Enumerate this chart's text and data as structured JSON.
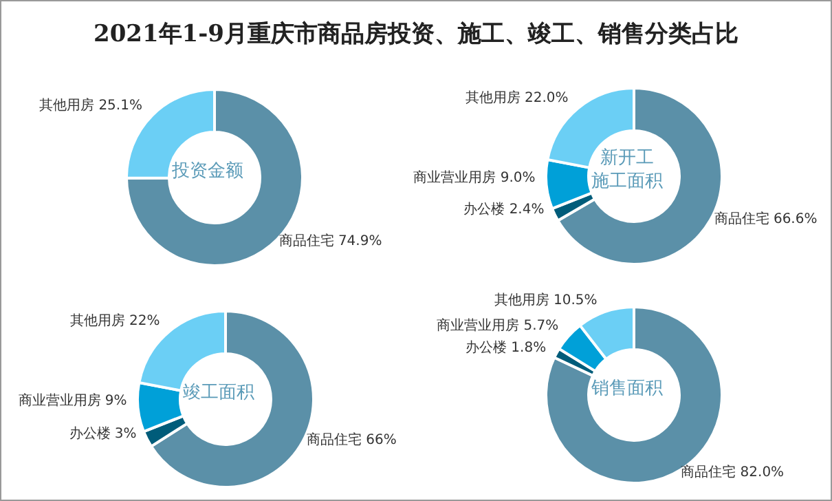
{
  "chart_data": [
    {
      "type": "donut",
      "title": "2021年1-9月重庆市商品房投资、施工、竣工、销售分类占比",
      "annotations": [
        "投资金额"
      ],
      "categories": [
        "商品住宅",
        "其他用房"
      ],
      "values": [
        74.9,
        25.1
      ],
      "value_labels": [
        "74.9%",
        "25.1%"
      ],
      "colors": [
        "#5b90a8",
        "#6bcff5"
      ]
    },
    {
      "type": "donut",
      "annotations": [
        "新开工施工面积"
      ],
      "categories": [
        "商品住宅",
        "办公楼",
        "商业营业用房",
        "其他用房"
      ],
      "values": [
        66.6,
        2.4,
        9.0,
        22.0
      ],
      "value_labels": [
        "66.6%",
        "2.4%",
        "9.0%",
        "22.0%"
      ],
      "colors": [
        "#5b90a8",
        "#005c7a",
        "#00a0d8",
        "#6bcff5"
      ]
    },
    {
      "type": "donut",
      "annotations": [
        "竣工面积"
      ],
      "categories": [
        "商品住宅",
        "办公楼",
        "商业营业用房",
        "其他用房"
      ],
      "values": [
        66,
        3,
        9,
        22
      ],
      "value_labels": [
        "66%",
        "3%",
        "9%",
        "22%"
      ],
      "colors": [
        "#5b90a8",
        "#005c7a",
        "#00a0d8",
        "#6bcff5"
      ]
    },
    {
      "type": "donut",
      "annotations": [
        "销售面积"
      ],
      "categories": [
        "商品住宅",
        "办公楼",
        "商业营业用房",
        "其他用房"
      ],
      "values": [
        82.0,
        1.8,
        5.7,
        10.5
      ],
      "value_labels": [
        "82.0%",
        "1.8%",
        "5.7%",
        "10.5%"
      ],
      "colors": [
        "#5b90a8",
        "#005c7a",
        "#00a0d8",
        "#6bcff5"
      ]
    }
  ]
}
